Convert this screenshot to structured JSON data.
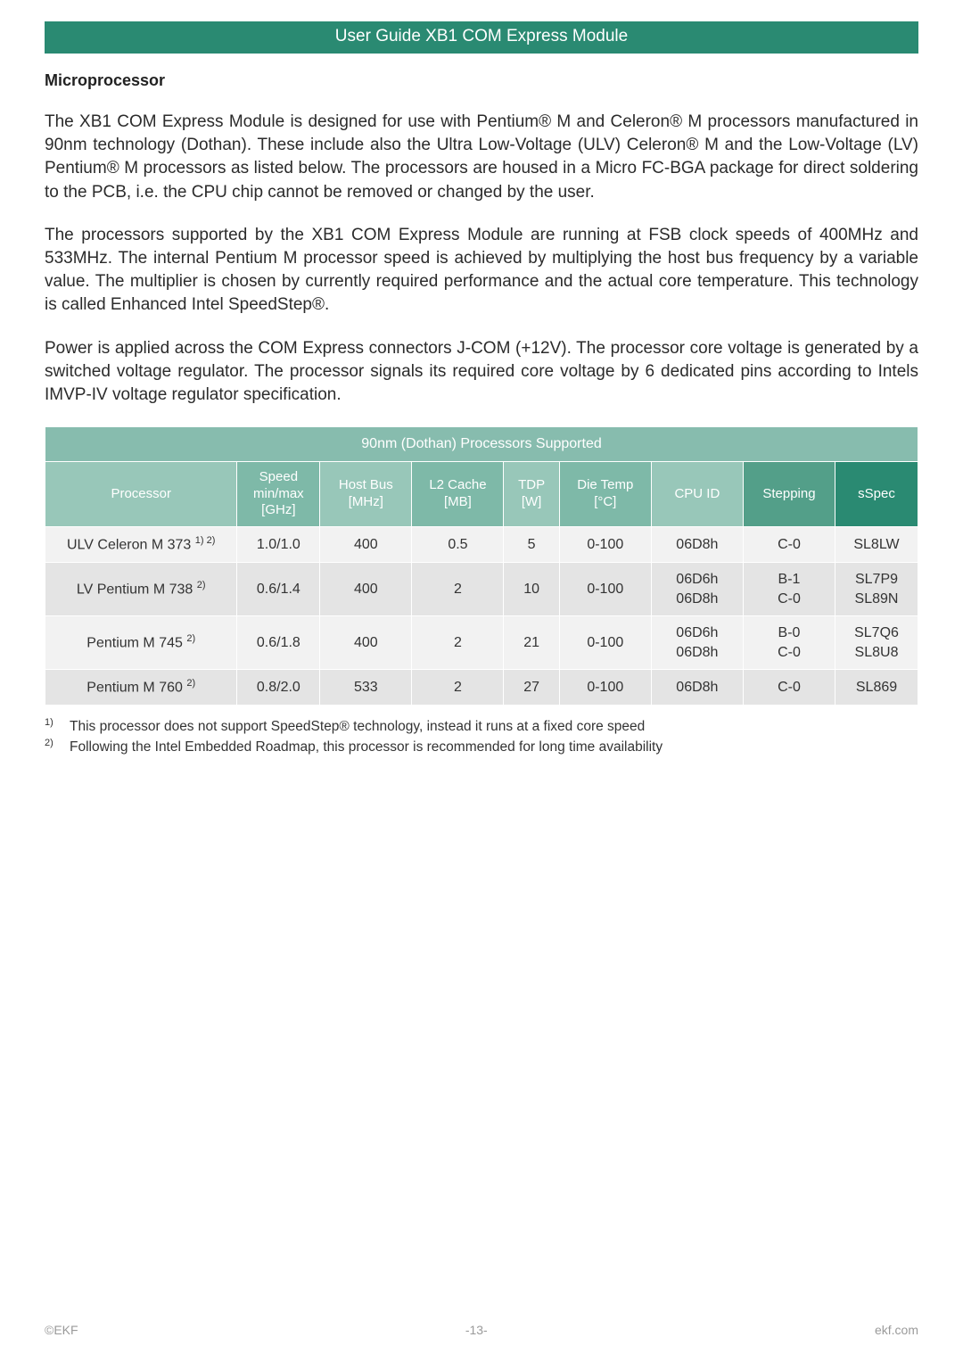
{
  "header": {
    "band_text": "User Guide XB1 COM Express Module"
  },
  "section": {
    "title": "Microprocessor",
    "para1": "The XB1 COM Express Module is designed for use with Pentium® M and Celeron® M processors manufactured in 90nm technology (Dothan). These include also the Ultra Low-Voltage (ULV) Celeron® M and the Low-Voltage (LV) Pentium® M processors as listed below. The processors are housed in a Micro FC-BGA package for direct soldering to the PCB, i.e. the CPU chip cannot be removed or changed by the user.",
    "para2": "The processors supported by the XB1 COM Express Module are running at FSB clock speeds of 400MHz and 533MHz. The internal Pentium M processor speed is achieved by multiplying the host bus frequency by a variable value. The multiplier is chosen by currently required performance and the actual core temperature. This technology is called Enhanced Intel SpeedStep®.",
    "para3": "Power is applied across the COM Express connectors J-COM (+12V). The processor core voltage is generated by a switched voltage regulator. The processor signals its required core voltage by 6 dedicated pins according to Intels IMVP-IV voltage regulator specification."
  },
  "table": {
    "title": "90nm (Dothan) Processors Supported",
    "columns": [
      {
        "label": "Processor",
        "color": "#98c7b9",
        "width": "21%"
      },
      {
        "label": "Speed\nmin/max\n[GHz]",
        "color": "#7eb9a8",
        "width": "9%"
      },
      {
        "label": "Host Bus\n[MHz]",
        "color": "#98c7b9",
        "width": "10%"
      },
      {
        "label": "L2 Cache\n[MB]",
        "color": "#7eb9a8",
        "width": "10%"
      },
      {
        "label": "TDP\n[W]",
        "color": "#98c7b9",
        "width": "6%"
      },
      {
        "label": "Die Temp\n[°C]",
        "color": "#7eb9a8",
        "width": "10%"
      },
      {
        "label": "CPU ID",
        "color": "#98c7b9",
        "width": "10%"
      },
      {
        "label": "Stepping",
        "color": "#539f89",
        "width": "10%"
      },
      {
        "label": "sSpec",
        "color": "#2a8a72",
        "width": "9%"
      }
    ],
    "rows": [
      {
        "stripe": "a",
        "processor_name": "ULV Celeron M 373 ",
        "processor_note": "1) 2)",
        "cells": [
          "1.0/1.0",
          "400",
          "0.5",
          "5",
          "0-100",
          "06D8h",
          "C-0",
          "SL8LW"
        ]
      },
      {
        "stripe": "b",
        "processor_name": "LV Pentium M 738 ",
        "processor_note": "2)",
        "cells": [
          "0.6/1.4",
          "400",
          "2",
          "10",
          "0-100",
          "06D6h\n06D8h",
          "B-1\nC-0",
          "SL7P9\nSL89N"
        ]
      },
      {
        "stripe": "a",
        "processor_name": "Pentium M 745 ",
        "processor_note": "2)",
        "cells": [
          "0.6/1.8",
          "400",
          "2",
          "21",
          "0-100",
          "06D6h\n06D8h",
          "B-0\nC-0",
          "SL7Q6\nSL8U8"
        ]
      },
      {
        "stripe": "b",
        "processor_name": "Pentium M 760 ",
        "processor_note": "2)",
        "cells": [
          "0.8/2.0",
          "533",
          "2",
          "27",
          "0-100",
          "06D8h",
          "C-0",
          "SL869"
        ]
      }
    ]
  },
  "footnotes": [
    {
      "num": "1)",
      "text": "This processor does not support SpeedStep® technology, instead it runs at a fixed core speed"
    },
    {
      "num": "2)",
      "text": "Following the Intel Embedded Roadmap, this processor is recommended for long time availability"
    }
  ],
  "footer": {
    "left": "©EKF",
    "center": "-13-",
    "right": "ekf.com"
  }
}
